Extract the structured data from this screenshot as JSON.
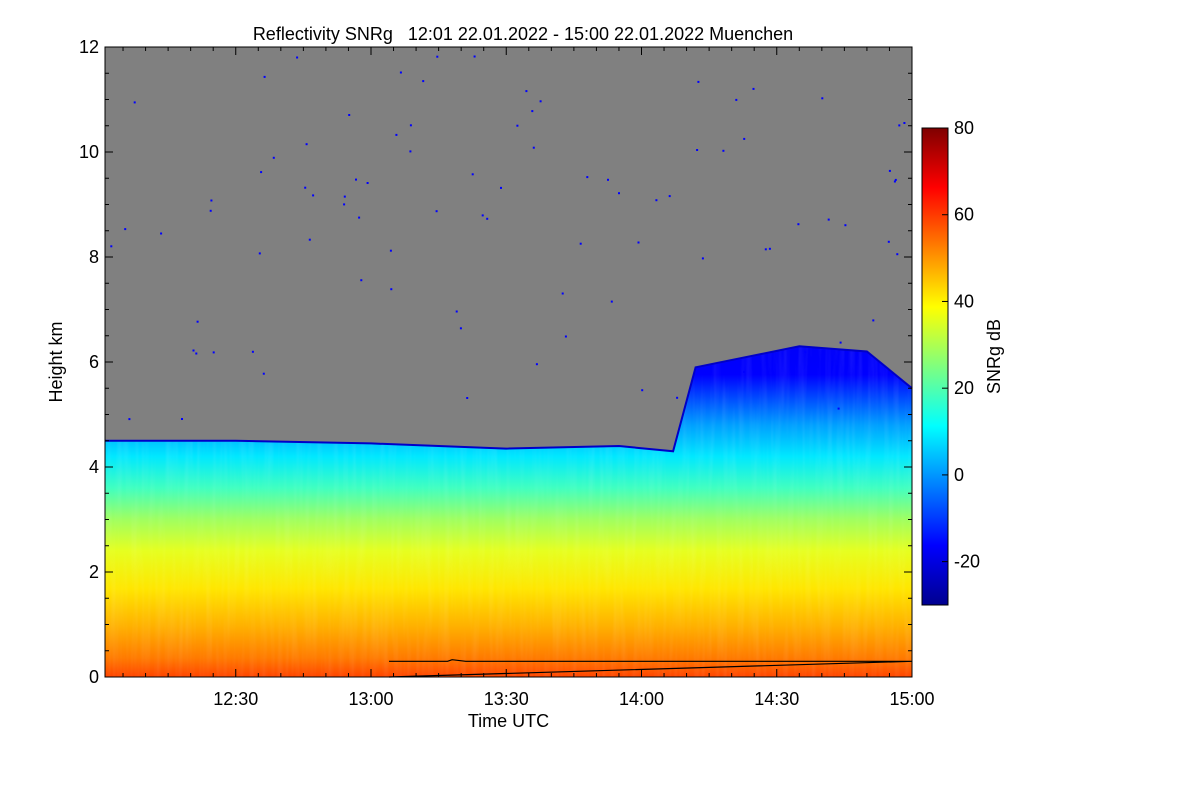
{
  "chart_data": {
    "type": "heatmap",
    "title": "Reflectivity SNRg   12:01 22.01.2022 - 15:00 22.01.2022 Muenchen",
    "xlabel": "Time UTC",
    "ylabel": "Height km",
    "x_range": [
      "12:01",
      "15:00"
    ],
    "x_ticks": [
      "12:30",
      "13:00",
      "13:30",
      "14:00",
      "14:30",
      "15:00"
    ],
    "ylim": [
      0,
      12
    ],
    "y_ticks": [
      "0",
      "2",
      "4",
      "6",
      "8",
      "10",
      "12"
    ],
    "no_data_color": "#808080",
    "colorbar": {
      "label": "SNRg dB",
      "range": [
        -30,
        80
      ],
      "ticks": [
        "-20",
        "0",
        "20",
        "40",
        "60",
        "80"
      ],
      "colormap": [
        "#00008f",
        "#0000ff",
        "#007fff",
        "#00ffff",
        "#7fff7f",
        "#ffff00",
        "#ff7f00",
        "#ff0000",
        "#7f0000"
      ]
    },
    "echo_top_km": [
      {
        "time": "12:01",
        "height_km": 4.5
      },
      {
        "time": "12:30",
        "height_km": 4.5
      },
      {
        "time": "13:00",
        "height_km": 4.45
      },
      {
        "time": "13:30",
        "height_km": 4.35
      },
      {
        "time": "13:55",
        "height_km": 4.4
      },
      {
        "time": "14:07",
        "height_km": 4.3
      },
      {
        "time": "14:12",
        "height_km": 5.9
      },
      {
        "time": "14:35",
        "height_km": 6.3
      },
      {
        "time": "14:50",
        "height_km": 6.2
      },
      {
        "time": "15:00",
        "height_km": 5.5
      }
    ],
    "snr_profile": [
      {
        "height_km": 0.1,
        "snrg_db": 55
      },
      {
        "height_km": 0.5,
        "snrg_db": 45
      },
      {
        "height_km": 1.0,
        "snrg_db": 38
      },
      {
        "height_km": 2.0,
        "snrg_db": 28
      },
      {
        "height_km": 3.0,
        "snrg_db": 15
      },
      {
        "height_km": 3.8,
        "snrg_db": 2
      },
      {
        "height_km": 4.3,
        "snrg_db": -15
      }
    ],
    "reference_line": [
      {
        "time": "13:04",
        "height_km": 0.3
      },
      {
        "time": "13:17",
        "height_km": 0.3
      },
      {
        "time": "13:18",
        "height_km": 0.33
      },
      {
        "time": "13:21",
        "height_km": 0.3
      },
      {
        "time": "15:00",
        "height_km": 0.3
      }
    ]
  }
}
